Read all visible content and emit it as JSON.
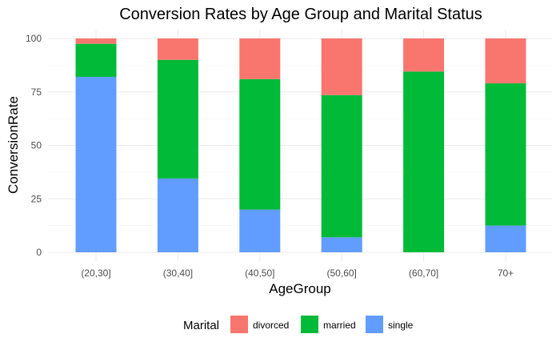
{
  "chart_data": {
    "type": "bar",
    "stacked": true,
    "title": "Conversion Rates by Age Group and Marital Status",
    "xlabel": "AgeGroup",
    "ylabel": "ConversionRate",
    "ylim": [
      0,
      100
    ],
    "yticks": [
      0,
      25,
      50,
      75,
      100
    ],
    "grid": true,
    "legend_position": "bottom",
    "legend_title": "Marital",
    "categories": [
      "(20,30]",
      "(30,40]",
      "(40,50]",
      "(50,60]",
      "(60,70]",
      "70+"
    ],
    "series": [
      {
        "name": "single",
        "color": "#619CFF",
        "values": [
          82,
          34.5,
          20,
          7,
          0,
          12.5
        ]
      },
      {
        "name": "married",
        "color": "#00BA38",
        "values": [
          15.5,
          55.5,
          61,
          66.5,
          84.5,
          66.5
        ]
      },
      {
        "name": "divorced",
        "color": "#F8766D",
        "values": [
          2.5,
          10,
          19,
          26.5,
          15.5,
          21
        ]
      }
    ],
    "legend_order": [
      "divorced",
      "married",
      "single"
    ]
  }
}
